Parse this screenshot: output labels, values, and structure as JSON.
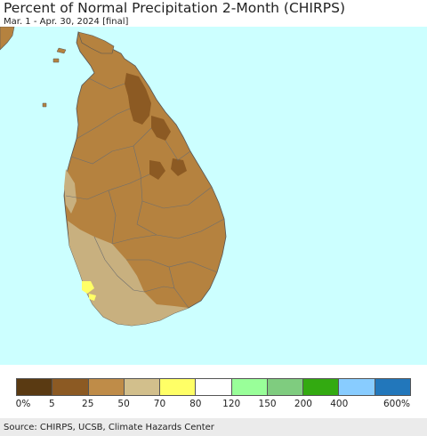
{
  "header": {
    "title": "Percent of Normal Precipitation 2-Month (CHIRPS)",
    "subtitle": "Mar. 1 - Apr. 30, 2024 [final]"
  },
  "map": {
    "ocean_color": "#ccffff",
    "land_colors": {
      "very_dry": "#8c5a23",
      "dry": "#b5823f",
      "moderately_dry": "#c8b07f",
      "near_normal": "#ffff66"
    }
  },
  "legend": {
    "colors": [
      "#5a3a12",
      "#8c5a23",
      "#bf8c48",
      "#d2bf8c",
      "#ffff66",
      "#ffffff",
      "#99ff99",
      "#7fcc7f",
      "#33aa11",
      "#88ccff",
      "#2277bb"
    ],
    "labels": [
      "0%",
      "5",
      "25",
      "50",
      "70",
      "80",
      "120",
      "150",
      "200",
      "400",
      "600%"
    ]
  },
  "footer": {
    "source": "Source: CHIRPS, UCSB, Climate Hazards Center"
  }
}
